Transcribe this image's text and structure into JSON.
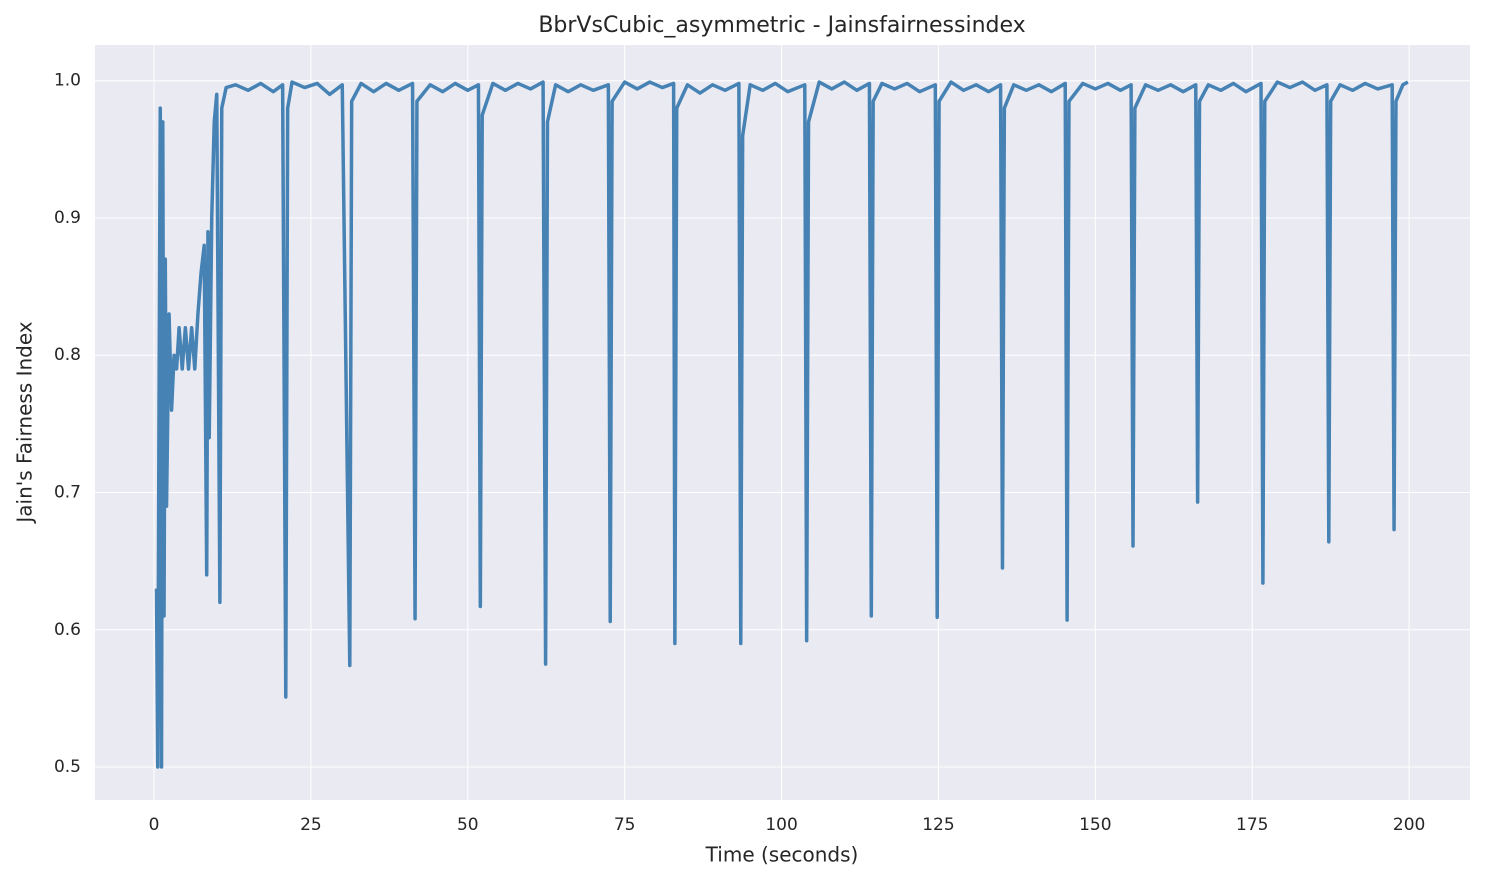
{
  "chart_data": {
    "type": "line",
    "title": "BbrVsCubic_asymmetric - Jainsfairnessindex",
    "x_label": "Time (seconds)",
    "y_label": "Jain's Fairness Index",
    "color": "#4682b4",
    "background": "#eaeaf2",
    "grid": true,
    "xlim": [
      -9.4,
      209.7
    ],
    "ylim": [
      0.476,
      1.026
    ],
    "xticks": [
      0,
      25,
      50,
      75,
      100,
      125,
      150,
      175,
      200
    ],
    "yticks": [
      0.5,
      0.6,
      0.7,
      0.8,
      0.9,
      {
        "value": 1.0,
        "label": "1.0"
      }
    ],
    "x": [
      0.4,
      0.6,
      0.8,
      1.0,
      1.2,
      1.4,
      1.6,
      1.8,
      2.0,
      2.4,
      2.8,
      3.2,
      3.6,
      4,
      4.5,
      5,
      5.5,
      6,
      6.5,
      7,
      7.5,
      8,
      8.4,
      8.6,
      8.8,
      9.2,
      9.6,
      10,
      10.5,
      10.8,
      11.5,
      13,
      15,
      17,
      19,
      20.5,
      21,
      21.3,
      22,
      24,
      26,
      28,
      30,
      31.2,
      31.5,
      33,
      35,
      37,
      39,
      41.2,
      41.6,
      41.9,
      44,
      46,
      48,
      50,
      51.7,
      52,
      52.3,
      54,
      56,
      58,
      60,
      62,
      62.4,
      62.7,
      64,
      66,
      68,
      70,
      72.4,
      72.7,
      73,
      75,
      77,
      79,
      81,
      82.8,
      83,
      83.3,
      85,
      87,
      89,
      91,
      93.2,
      93.5,
      93.8,
      95,
      97,
      99,
      101,
      103.7,
      104,
      104.3,
      106,
      108,
      110,
      112,
      114,
      114.3,
      114.6,
      116,
      118,
      120,
      122,
      124.5,
      124.8,
      125.1,
      127,
      129,
      131,
      133,
      134.9,
      135.2,
      135.5,
      137,
      139,
      141,
      143,
      145.2,
      145.5,
      145.8,
      148,
      150,
      152,
      154,
      155.7,
      156,
      156.3,
      158,
      160,
      162,
      164,
      166,
      166.3,
      166.6,
      168,
      170,
      172,
      174,
      176.4,
      176.7,
      177,
      179,
      181,
      183,
      185,
      186.9,
      187.2,
      187.5,
      189,
      191,
      193,
      195,
      197.3,
      197.6,
      197.9,
      199,
      199.8
    ],
    "values": [
      0.63,
      0.5,
      0.76,
      0.98,
      0.5,
      0.97,
      0.61,
      0.87,
      0.69,
      0.83,
      0.76,
      0.8,
      0.79,
      0.82,
      0.79,
      0.82,
      0.79,
      0.82,
      0.79,
      0.83,
      0.86,
      0.88,
      0.64,
      0.89,
      0.74,
      0.9,
      0.97,
      0.99,
      0.62,
      0.98,
      0.995,
      0.997,
      0.993,
      0.998,
      0.992,
      0.997,
      0.551,
      0.98,
      0.999,
      0.995,
      0.998,
      0.99,
      0.997,
      0.574,
      0.985,
      0.998,
      0.992,
      0.998,
      0.993,
      0.998,
      0.608,
      0.985,
      0.997,
      0.992,
      0.998,
      0.993,
      0.997,
      0.617,
      0.975,
      0.998,
      0.993,
      0.998,
      0.994,
      0.999,
      0.575,
      0.97,
      0.997,
      0.992,
      0.997,
      0.993,
      0.997,
      0.606,
      0.985,
      0.999,
      0.994,
      0.999,
      0.995,
      0.998,
      0.59,
      0.98,
      0.997,
      0.991,
      0.997,
      0.993,
      0.998,
      0.59,
      0.96,
      0.997,
      0.993,
      0.998,
      0.992,
      0.997,
      0.592,
      0.97,
      0.999,
      0.994,
      0.999,
      0.993,
      0.998,
      0.61,
      0.985,
      0.998,
      0.994,
      0.998,
      0.992,
      0.997,
      0.609,
      0.985,
      0.999,
      0.993,
      0.997,
      0.992,
      0.997,
      0.645,
      0.98,
      0.997,
      0.993,
      0.997,
      0.992,
      0.998,
      0.607,
      0.985,
      0.998,
      0.994,
      0.998,
      0.993,
      0.997,
      0.661,
      0.98,
      0.997,
      0.993,
      0.997,
      0.992,
      0.997,
      0.693,
      0.985,
      0.997,
      0.993,
      0.998,
      0.992,
      0.998,
      0.634,
      0.985,
      0.999,
      0.995,
      0.999,
      0.993,
      0.997,
      0.664,
      0.985,
      0.997,
      0.993,
      0.998,
      0.994,
      0.997,
      0.673,
      0.985,
      0.997,
      0.999
    ]
  }
}
